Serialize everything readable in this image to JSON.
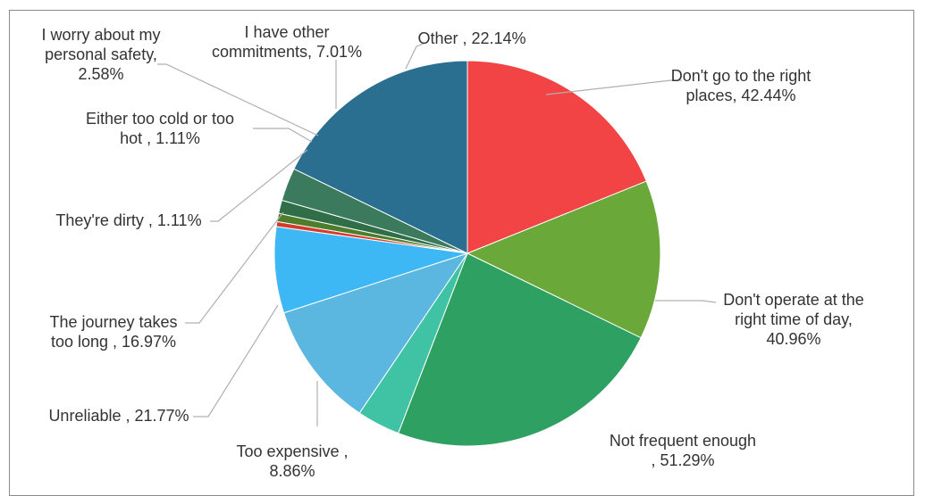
{
  "chart_data": {
    "type": "pie",
    "title": "",
    "slices": [
      {
        "name": "Don't go to the right places",
        "value": 42.44,
        "color": "#f24444",
        "label_lines": [
          "Don't go to the right",
          "places, 42.44%"
        ]
      },
      {
        "name": "Don't operate at the right time of day",
        "value": 40.96,
        "color": "#6aa83a",
        "label_lines": [
          "Don't operate at the",
          "right time of day,",
          "40.96%"
        ]
      },
      {
        "name": "Not frequent enough",
        "value": 51.29,
        "color": "#2ea062",
        "label_lines": [
          "Not frequent enough",
          ", 51.29%"
        ]
      },
      {
        "name": "Too expensive",
        "value": 8.86,
        "color": "#3fc3a4",
        "label_lines": [
          "Too expensive ,",
          "8.86%"
        ]
      },
      {
        "name": "Unreliable",
        "value": 21.77,
        "color": "#5bb6e0",
        "label_lines": [
          "Unreliable , 21.77%"
        ]
      },
      {
        "name": "The journey takes too long",
        "value": 16.97,
        "color": "#3db8f5",
        "label_lines": [
          "The journey takes",
          "too long , 16.97%"
        ]
      },
      {
        "name": "They're dirty",
        "value": 1.11,
        "color": "#d63a2a",
        "label_lines": [
          "They're dirty , 1.11%"
        ]
      },
      {
        "name": "Either too cold or too hot",
        "value": 1.11,
        "color": "#4e7d2c",
        "label_lines": [
          "Either too cold or too",
          "hot , 1.11%"
        ]
      },
      {
        "name": "I worry about my personal safety",
        "value": 2.58,
        "color": "#2f6e46",
        "label_lines": [
          "I worry about my",
          "personal safety,",
          "2.58%"
        ]
      },
      {
        "name": "I have other commitments",
        "value": 7.01,
        "color": "#3b7a5c",
        "label_lines": [
          "I have other",
          "commitments, 7.01%"
        ]
      },
      {
        "name": "Other",
        "value": 22.14,
        "color": "#2a6f8f",
        "label_lines": [
          "Other , 22.14%"
        ]
      }
    ],
    "legend": "none",
    "start_angle": "12 o'clock",
    "direction": "clockwise"
  }
}
